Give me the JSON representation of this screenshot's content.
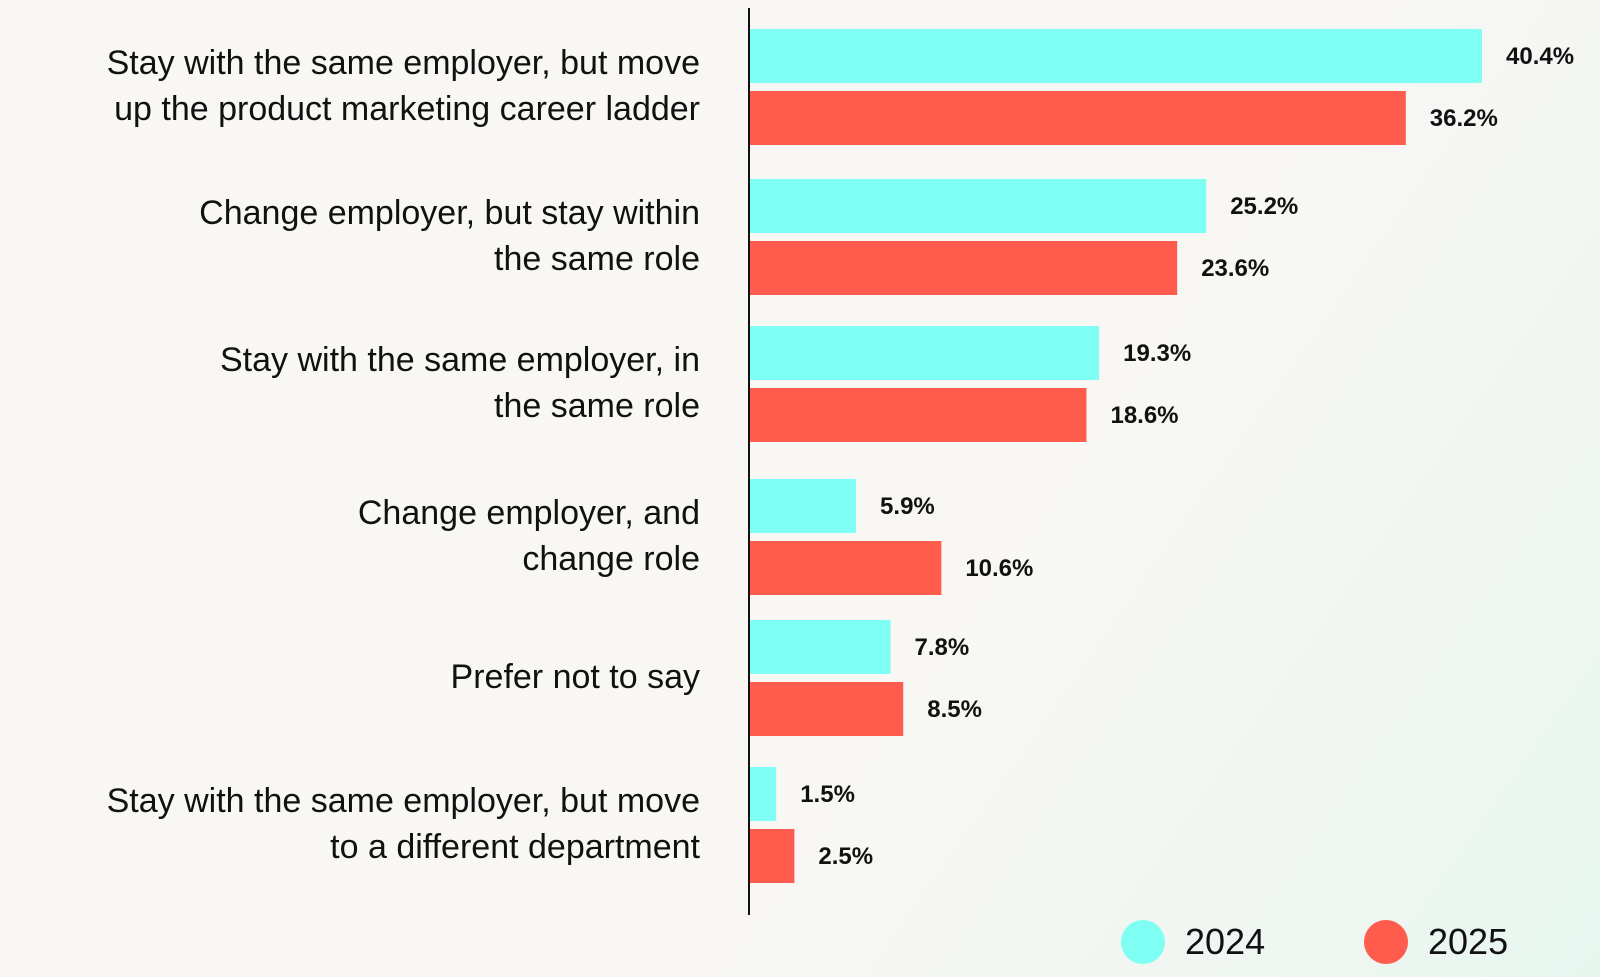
{
  "chart_data": {
    "type": "bar",
    "orientation": "horizontal",
    "categories": [
      [
        "Stay with the same employer, but move",
        "up the product marketing career ladder"
      ],
      [
        "Change employer, but stay within",
        "the same role"
      ],
      [
        "Stay with the same employer, in",
        "the same role"
      ],
      [
        "Change employer, and",
        "change role"
      ],
      [
        "Prefer not to say"
      ],
      [
        "Stay with the same employer, but move",
        "to a different department"
      ]
    ],
    "series": [
      {
        "name": "2024",
        "color": "#7ffff4",
        "values": [
          40.4,
          25.2,
          19.3,
          5.9,
          7.8,
          1.5
        ],
        "labels": [
          "40.4%",
          "25.2%",
          "19.3%",
          "5.9%",
          "7.8%",
          "1.5%"
        ]
      },
      {
        "name": "2025",
        "color": "#ff5c4d",
        "values": [
          36.2,
          23.6,
          18.6,
          10.6,
          8.5,
          2.5
        ],
        "labels": [
          "36.2%",
          "23.6%",
          "18.6%",
          "10.6%",
          "8.5%",
          "2.5%"
        ]
      }
    ],
    "xlim": [
      0,
      40.4
    ],
    "legend_position": "bottom-right",
    "grid": false
  }
}
